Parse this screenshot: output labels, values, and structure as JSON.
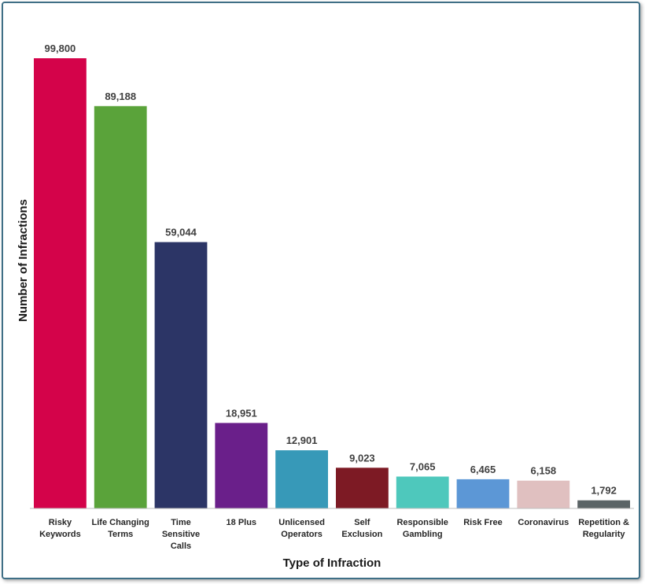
{
  "chart_data": {
    "type": "bar",
    "title": "",
    "xlabel": "Type of Infraction",
    "ylabel": "Number of Infractions",
    "ylim": [
      0,
      99800
    ],
    "grid": false,
    "legend": "none",
    "categories": [
      [
        "Risky",
        "Keywords"
      ],
      [
        "Life Changing",
        "Terms"
      ],
      [
        "Time",
        "Sensitive",
        "Calls"
      ],
      [
        "18 Plus"
      ],
      [
        "Unlicensed",
        "Operators"
      ],
      [
        "Self",
        "Exclusion"
      ],
      [
        "Responsible",
        "Gambling"
      ],
      [
        "Risk Free"
      ],
      [
        "Coronavirus"
      ],
      [
        "Repetition &",
        "Regularity"
      ]
    ],
    "values": [
      99800,
      89188,
      59044,
      18951,
      12901,
      9023,
      7065,
      6465,
      6158,
      1792
    ],
    "value_labels": [
      "99,800",
      "89,188",
      "59,044",
      "18,951",
      "12,901",
      "9,023",
      "7,065",
      "6,465",
      "6,158",
      "1,792"
    ],
    "colors": [
      "#d4034a",
      "#5aa33a",
      "#2c3566",
      "#6a1f8a",
      "#3799b8",
      "#7d1a24",
      "#4ec8bc",
      "#5c97d6",
      "#e0c0c0",
      "#5b6466"
    ]
  }
}
